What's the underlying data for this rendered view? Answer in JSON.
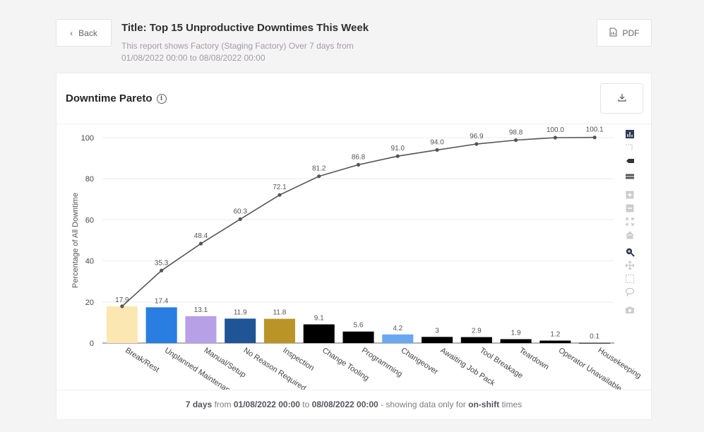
{
  "header": {
    "back_label": "Back",
    "pdf_label": "PDF",
    "title": "Title: Top 15 Unproductive Downtimes This Week",
    "description": "This report shows Factory (Staging Factory) Over 7 days from 01/08/2022 00:00 to 08/08/2022 00:00"
  },
  "card": {
    "title": "Downtime Pareto",
    "info_glyph": "i"
  },
  "footer": {
    "part1": "7 days",
    "part2": " from ",
    "part3": "01/08/2022 00:00",
    "part4": " to ",
    "part5": "08/08/2022 00:00",
    "part6": " - showing data only for ",
    "part7": "on-shift",
    "part8": " times"
  },
  "chart_data": {
    "type": "bar",
    "title": "",
    "xlabel": "",
    "ylabel": "Percentage of All Downtime",
    "ylim": [
      0,
      100
    ],
    "yticks": [
      0,
      20,
      40,
      60,
      80,
      100
    ],
    "grid": true,
    "categories": [
      "Break/Rest",
      "Unplanned Maintenance",
      "Manual/Setup",
      "No Reason Required",
      "Inspection",
      "Change Tooling",
      "Programming",
      "Changeover",
      "Awaiting Job Pack",
      "Tool Breakage",
      "Teardown",
      "Operator Unavailable",
      "Housekeeping"
    ],
    "series": [
      {
        "type": "bar",
        "values": [
          17.9,
          17.4,
          13.1,
          11.9,
          11.8,
          9.1,
          5.6,
          4.2,
          3,
          2.9,
          1.9,
          1.2,
          0.1
        ],
        "labels": [
          "17.9",
          "17.4",
          "13.1",
          "11.9",
          "11.8",
          "9.1",
          "5.6",
          "4.2",
          "3",
          "2.9",
          "1.9",
          "1.2",
          "0.1"
        ],
        "colors": [
          "#fbe7b2",
          "#2a7de1",
          "#b8a0e6",
          "#1f5495",
          "#bb9428",
          "#000000",
          "#000000",
          "#6aa7ee",
          "#000000",
          "#000000",
          "#000000",
          "#000000",
          "#000000"
        ]
      },
      {
        "type": "line",
        "values": [
          17.9,
          35.3,
          48.4,
          60.3,
          72.1,
          81.2,
          86.8,
          91.0,
          94.0,
          96.9,
          98.8,
          100.0,
          100.1
        ],
        "labels": [
          "17.9",
          "35.3",
          "48.4",
          "60.3",
          "72.1",
          "81.2",
          "86.8",
          "91.0",
          "94.0",
          "96.9",
          "98.8",
          "100.0",
          "100.1"
        ],
        "color": "#555555"
      }
    ]
  },
  "toolbar_icons": [
    "bar-chart-icon",
    "grid-lines-icon",
    "tag-icon",
    "compare-icon",
    "zoom-in-icon",
    "zoom-out-icon",
    "autoscale-icon",
    "reset-home-icon",
    "zoom-icon",
    "pan-icon",
    "box-select-icon",
    "lasso-icon",
    "camera-icon"
  ]
}
